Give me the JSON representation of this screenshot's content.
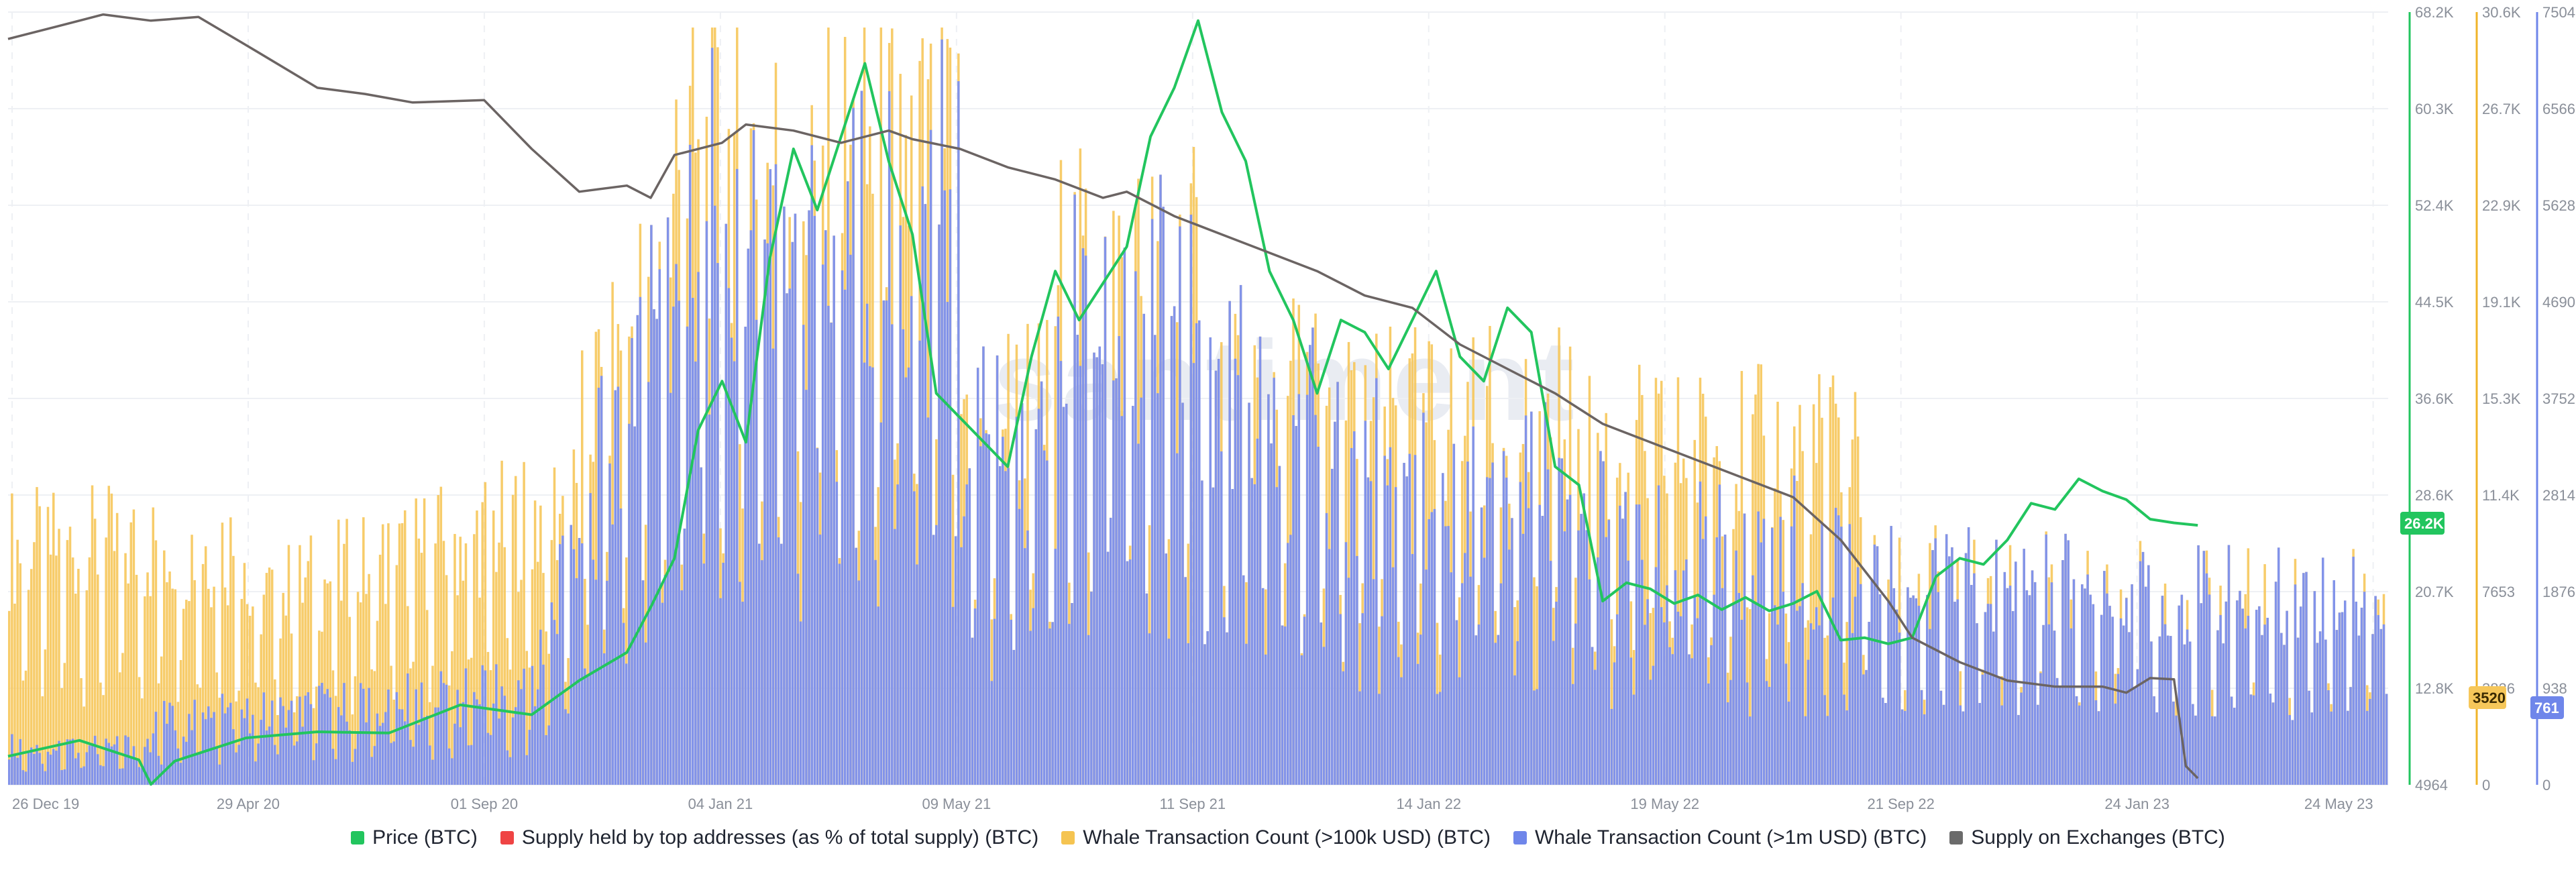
{
  "watermark": "santiment",
  "legend": [
    {
      "label": "Price (BTC)",
      "color": "#22c55e"
    },
    {
      "label": "Supply held by top addresses (as % of total supply) (BTC)",
      "color": "#ef4444"
    },
    {
      "label": "Whale Transaction Count (>100k USD) (BTC)",
      "color": "#f5c451"
    },
    {
      "label": "Whale Transaction Count (>1m USD) (BTC)",
      "color": "#6f86ea"
    },
    {
      "label": "Supply on Exchanges (BTC)",
      "color": "#6b6b6b"
    }
  ],
  "chart_data": {
    "type": "bar",
    "x_labels": [
      "26 Dec 19",
      "29 Apr 20",
      "01 Sep 20",
      "04 Jan 21",
      "09 May 21",
      "11 Sep 21",
      "14 Jan 22",
      "19 May 22",
      "21 Sep 22",
      "24 Jan 23",
      "24 May 23"
    ],
    "axes": {
      "price": {
        "ticks": [
          "68.2K",
          "60.3K",
          "52.4K",
          "44.5K",
          "36.6K",
          "28.6K",
          "20.7K",
          "12.8K",
          "4964"
        ],
        "range": [
          4964,
          68200
        ],
        "color": "#22c55e"
      },
      "whale_100k": {
        "ticks": [
          "30.6K",
          "26.7K",
          "22.9K",
          "19.1K",
          "15.3K",
          "11.4K",
          "7653",
          "3826",
          "0"
        ],
        "range": [
          0,
          30600
        ],
        "color": "#f0b429"
      },
      "whale_1m": {
        "ticks": [
          "7504",
          "6566",
          "5628",
          "4690",
          "3752",
          "2814",
          "1876",
          "938",
          "0"
        ],
        "range": [
          0,
          7504
        ],
        "color": "#6f86ea"
      }
    },
    "current_values": {
      "price": "26.2K",
      "whale_100k": "3520",
      "whale_1m": "761"
    },
    "series": [
      {
        "name": "Price (BTC)",
        "axis": "price",
        "points": [
          [
            0,
            7300
          ],
          [
            0.03,
            8600
          ],
          [
            0.055,
            7000
          ],
          [
            0.06,
            5000
          ],
          [
            0.07,
            6900
          ],
          [
            0.1,
            8800
          ],
          [
            0.13,
            9300
          ],
          [
            0.16,
            9200
          ],
          [
            0.19,
            11500
          ],
          [
            0.22,
            10700
          ],
          [
            0.24,
            13500
          ],
          [
            0.26,
            15800
          ],
          [
            0.27,
            19500
          ],
          [
            0.28,
            23500
          ],
          [
            0.29,
            34000
          ],
          [
            0.3,
            38000
          ],
          [
            0.31,
            33000
          ],
          [
            0.32,
            48000
          ],
          [
            0.33,
            57000
          ],
          [
            0.34,
            52000
          ],
          [
            0.35,
            58000
          ],
          [
            0.36,
            64000
          ],
          [
            0.37,
            56000
          ],
          [
            0.38,
            50000
          ],
          [
            0.39,
            37000
          ],
          [
            0.4,
            35000
          ],
          [
            0.42,
            31000
          ],
          [
            0.43,
            40000
          ],
          [
            0.44,
            47000
          ],
          [
            0.45,
            43000
          ],
          [
            0.47,
            49000
          ],
          [
            0.48,
            58000
          ],
          [
            0.49,
            62000
          ],
          [
            0.5,
            67500
          ],
          [
            0.51,
            60000
          ],
          [
            0.52,
            56000
          ],
          [
            0.53,
            47000
          ],
          [
            0.54,
            43000
          ],
          [
            0.55,
            37000
          ],
          [
            0.56,
            43000
          ],
          [
            0.57,
            42000
          ],
          [
            0.58,
            39000
          ],
          [
            0.59,
            43000
          ],
          [
            0.6,
            47000
          ],
          [
            0.61,
            40000
          ],
          [
            0.62,
            38000
          ],
          [
            0.63,
            44000
          ],
          [
            0.64,
            42000
          ],
          [
            0.65,
            31000
          ],
          [
            0.66,
            29500
          ],
          [
            0.67,
            20000
          ],
          [
            0.68,
            21500
          ],
          [
            0.69,
            21000
          ],
          [
            0.7,
            19800
          ],
          [
            0.71,
            20500
          ],
          [
            0.72,
            19300
          ],
          [
            0.73,
            20300
          ],
          [
            0.74,
            19200
          ],
          [
            0.75,
            19800
          ],
          [
            0.76,
            20800
          ],
          [
            0.77,
            16800
          ],
          [
            0.78,
            17000
          ],
          [
            0.79,
            16500
          ],
          [
            0.8,
            17000
          ],
          [
            0.81,
            22000
          ],
          [
            0.82,
            23500
          ],
          [
            0.83,
            23000
          ],
          [
            0.84,
            25000
          ],
          [
            0.85,
            28000
          ],
          [
            0.86,
            27500
          ],
          [
            0.87,
            30000
          ],
          [
            0.88,
            29000
          ],
          [
            0.89,
            28300
          ],
          [
            0.9,
            26700
          ],
          [
            0.91,
            26400
          ],
          [
            0.92,
            26200
          ]
        ]
      },
      {
        "name": "Supply on Exchanges (BTC)",
        "axis": "price",
        "points": [
          [
            0,
            66000
          ],
          [
            0.02,
            67000
          ],
          [
            0.04,
            68000
          ],
          [
            0.06,
            67500
          ],
          [
            0.08,
            67800
          ],
          [
            0.1,
            65500
          ],
          [
            0.13,
            62000
          ],
          [
            0.15,
            61500
          ],
          [
            0.17,
            60800
          ],
          [
            0.2,
            61000
          ],
          [
            0.22,
            57000
          ],
          [
            0.24,
            53500
          ],
          [
            0.26,
            54000
          ],
          [
            0.27,
            53000
          ],
          [
            0.28,
            56500
          ],
          [
            0.3,
            57500
          ],
          [
            0.31,
            59000
          ],
          [
            0.33,
            58500
          ],
          [
            0.35,
            57500
          ],
          [
            0.37,
            58500
          ],
          [
            0.38,
            57800
          ],
          [
            0.4,
            57000
          ],
          [
            0.42,
            55500
          ],
          [
            0.44,
            54500
          ],
          [
            0.46,
            53000
          ],
          [
            0.47,
            53500
          ],
          [
            0.49,
            51500
          ],
          [
            0.51,
            50000
          ],
          [
            0.53,
            48500
          ],
          [
            0.55,
            47000
          ],
          [
            0.57,
            45000
          ],
          [
            0.59,
            44000
          ],
          [
            0.61,
            41000
          ],
          [
            0.63,
            39000
          ],
          [
            0.65,
            37000
          ],
          [
            0.67,
            34500
          ],
          [
            0.69,
            33000
          ],
          [
            0.71,
            31500
          ],
          [
            0.73,
            30000
          ],
          [
            0.75,
            28500
          ],
          [
            0.77,
            25000
          ],
          [
            0.79,
            20000
          ],
          [
            0.8,
            17000
          ],
          [
            0.82,
            15000
          ],
          [
            0.84,
            13500
          ],
          [
            0.86,
            13000
          ],
          [
            0.88,
            13000
          ],
          [
            0.89,
            12500
          ],
          [
            0.9,
            13700
          ],
          [
            0.91,
            13600
          ],
          [
            0.915,
            6500
          ],
          [
            0.92,
            5500
          ]
        ]
      }
    ]
  }
}
